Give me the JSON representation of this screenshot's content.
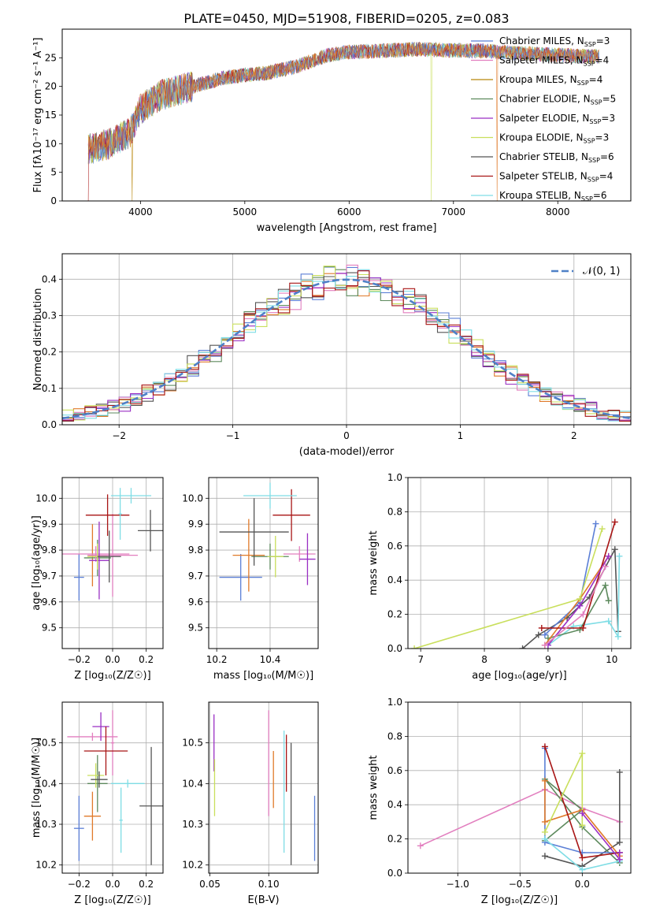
{
  "title": "PLATE=0450, MJD=51908, FIBERID=0205, z=0.083",
  "colors": {
    "blue": "#5b7fd6",
    "orange": "#e07a2a",
    "green": "#5d8a5d",
    "pink": "#e27fbf",
    "dgray": "#555555",
    "purple": "#9a2fc4",
    "lime": "#c9df5c",
    "cyan": "#7fdde5",
    "red": "#a81515",
    "tan": "#b8860b",
    "gaussian": "#4f81c7"
  },
  "chart_data": [
    {
      "type": "line",
      "title": "PLATE=0450, MJD=51908, FIBERID=0205, z=0.083",
      "xlabel": "wavelength [Angstrom, rest frame]",
      "ylabel": "Flux [fλ10⁻¹⁷ erg cm⁻² s⁻¹ A⁻¹]",
      "xlim": [
        3250,
        8700
      ],
      "ylim": [
        0,
        30
      ],
      "xticks": [
        "4000",
        "5000",
        "6000",
        "7000",
        "8000"
      ],
      "yticks": [
        "0",
        "5",
        "10",
        "15",
        "20",
        "25"
      ],
      "continuum": {
        "x": [
          3500,
          3700,
          3900,
          4000,
          4200,
          4500,
          4800,
          5000,
          5200,
          5500,
          5800,
          6000,
          6300,
          6600,
          7000,
          7300,
          7600,
          7900,
          8200,
          8400
        ],
        "y": [
          9,
          10,
          12,
          16,
          18.5,
          20,
          21.5,
          22,
          22.3,
          23.5,
          25.5,
          26,
          26.2,
          26.5,
          26.3,
          26.2,
          25.8,
          25.6,
          25.3,
          25.2
        ]
      },
      "legend_position": "upper right",
      "legend": [
        {
          "label": "Chabrier MILES, N",
          "sub": "SSP",
          "value": "=3",
          "color": "#5b7fd6"
        },
        {
          "label": "Salpeter MILES, N",
          "sub": "SSP",
          "value": "=4",
          "color": "#e27fbf"
        },
        {
          "label": "Kroupa MILES, N",
          "sub": "SSP",
          "value": "=4",
          "color": "#b8860b"
        },
        {
          "label": "Chabrier ELODIE, N",
          "sub": "SSP",
          "value": "=5",
          "color": "#5d8a5d"
        },
        {
          "label": "Salpeter ELODIE, N",
          "sub": "SSP",
          "value": "=3",
          "color": "#9a2fc4"
        },
        {
          "label": "Kroupa ELODIE, N",
          "sub": "SSP",
          "value": "=3",
          "color": "#c9df5c"
        },
        {
          "label": "Chabrier STELIB, N",
          "sub": "SSP",
          "value": "=6",
          "color": "#555555"
        },
        {
          "label": "Salpeter STELIB, N",
          "sub": "SSP",
          "value": "=4",
          "color": "#a81515"
        },
        {
          "label": "Kroupa STELIB, N",
          "sub": "SSP",
          "value": "=6",
          "color": "#7fdde5"
        }
      ]
    },
    {
      "type": "histogram",
      "xlabel": "(data-model)/error",
      "ylabel": "Normed distribution",
      "xlim": [
        -2.5,
        2.5
      ],
      "ylim": [
        0,
        0.47
      ],
      "xticks": [
        "−2",
        "−1",
        "0",
        "1",
        "2"
      ],
      "yticks": [
        "0.0",
        "0.1",
        "0.2",
        "0.3",
        "0.4"
      ],
      "bin_width": 0.1,
      "legend_position": "upper right",
      "legend": [
        {
          "label": "𝒩(0, 1)",
          "color": "#4f81c7"
        }
      ],
      "series_colors": [
        "#5b7fd6",
        "#e07a2a",
        "#5d8a5d",
        "#e27fbf",
        "#555555",
        "#9a2fc4",
        "#c9df5c",
        "#7fdde5",
        "#a81515"
      ]
    },
    {
      "type": "errorbar",
      "xlabel": "Z [log₁₀(Z/Z☉)]",
      "ylabel": "age [log₁₀(age/yr)]",
      "xlim": [
        -0.3,
        0.3
      ],
      "ylim": [
        9.42,
        10.08
      ],
      "xticks": [
        "−0.2",
        "0.0",
        "0.2"
      ],
      "yticks": [
        "9.5",
        "9.6",
        "9.7",
        "9.8",
        "9.9",
        "10.0"
      ],
      "points": [
        {
          "x": -0.2,
          "xerr": 0.03,
          "y": 9.695,
          "yerr": 0.09,
          "color": "#5b7fd6"
        },
        {
          "x": -0.12,
          "xerr": 0.02,
          "y": 9.78,
          "yerr": 0.12,
          "color": "#e07a2a"
        },
        {
          "x": -0.09,
          "xerr": 0.08,
          "y": 9.77,
          "yerr": 0.07,
          "color": "#5d8a5d"
        },
        {
          "x": -0.1,
          "xerr": 0.2,
          "y": 9.785,
          "yerr": 0.03,
          "color": "#e27fbf"
        },
        {
          "x": 0.0,
          "xerr": 0.15,
          "y": 9.78,
          "yerr": 0.16,
          "color": "#e27fbf"
        },
        {
          "x": -0.08,
          "xerr": 0.06,
          "y": 9.76,
          "yerr": 0.15,
          "color": "#9a2fc4"
        },
        {
          "x": -0.09,
          "xerr": 0.06,
          "y": 9.775,
          "yerr": 0.05,
          "color": "#c9df5c"
        },
        {
          "x": 0.225,
          "xerr": 0.075,
          "y": 9.875,
          "yerr": 0.08,
          "color": "#555555"
        },
        {
          "x": -0.02,
          "xerr": 0.07,
          "y": 9.775,
          "yerr": 0.1,
          "color": "#555555"
        },
        {
          "x": -0.03,
          "xerr": 0.13,
          "y": 9.935,
          "yerr": 0.08,
          "color": "#a81515"
        },
        {
          "x": 0.11,
          "xerr": 0.12,
          "y": 10.01,
          "yerr": 0.03,
          "color": "#7fdde5"
        },
        {
          "x": 0.045,
          "xerr": 0.01,
          "y": 9.94,
          "yerr": 0.1,
          "color": "#7fdde5"
        }
      ]
    },
    {
      "type": "errorbar",
      "xlabel": "mass [log₁₀(M/M☉)]",
      "ylabel": "",
      "xlim": [
        10.17,
        10.58
      ],
      "ylim": [
        9.42,
        10.08
      ],
      "xticks": [
        "10.2",
        "10.4"
      ],
      "yticks": [
        "9.5",
        "9.6",
        "9.7",
        "9.8",
        "9.9",
        "10.0"
      ],
      "points": [
        {
          "x": 10.29,
          "xerr": 0.08,
          "y": 9.695,
          "yerr": 0.09,
          "color": "#5b7fd6"
        },
        {
          "x": 10.32,
          "xerr": 0.06,
          "y": 9.78,
          "yerr": 0.14,
          "color": "#e07a2a"
        },
        {
          "x": 10.4,
          "xerr": 0.07,
          "y": 9.775,
          "yerr": 0.05,
          "color": "#5d8a5d"
        },
        {
          "x": 10.51,
          "xerr": 0.06,
          "y": 9.785,
          "yerr": 0.03,
          "color": "#e27fbf"
        },
        {
          "x": 10.54,
          "xerr": 0.03,
          "y": 9.765,
          "yerr": 0.1,
          "color": "#9a2fc4"
        },
        {
          "x": 10.42,
          "xerr": 0.03,
          "y": 9.775,
          "yerr": 0.08,
          "color": "#c9df5c"
        },
        {
          "x": 10.34,
          "xerr": 0.13,
          "y": 9.87,
          "yerr": 0.13,
          "color": "#555555"
        },
        {
          "x": 10.48,
          "xerr": 0.07,
          "y": 9.935,
          "yerr": 0.1,
          "color": "#a81515"
        },
        {
          "x": 10.4,
          "xerr": 0.1,
          "y": 10.01,
          "yerr": 0.05,
          "color": "#7fdde5"
        }
      ]
    },
    {
      "type": "line",
      "xlabel": "age [log₁₀(age/yr)]",
      "ylabel": "mass weight",
      "xlim": [
        6.8,
        10.3
      ],
      "ylim": [
        0,
        1
      ],
      "xticks": [
        "7",
        "8",
        "9",
        "10"
      ],
      "yticks": [
        "0.0",
        "0.2",
        "0.4",
        "0.6",
        "0.8",
        "1.0"
      ],
      "series": [
        {
          "color": "#555555",
          "x": [
            8.6,
            8.85,
            9.3,
            9.65,
            10.05,
            10.1
          ],
          "y": [
            0.0,
            0.08,
            0.18,
            0.3,
            0.58,
            0.1
          ]
        },
        {
          "color": "#7fdde5",
          "x": [
            9.0,
            9.4,
            9.95,
            10.1,
            10.12
          ],
          "y": [
            0.02,
            0.13,
            0.16,
            0.07,
            0.54
          ]
        },
        {
          "color": "#5d8a5d",
          "x": [
            9.0,
            9.5,
            9.9,
            9.95
          ],
          "y": [
            0.06,
            0.11,
            0.37,
            0.28
          ]
        },
        {
          "color": "#5b7fd6",
          "x": [
            8.95,
            9.5,
            9.75
          ],
          "y": [
            0.08,
            0.27,
            0.73
          ]
        },
        {
          "color": "#e07a2a",
          "x": [
            8.95,
            9.5,
            9.95
          ],
          "y": [
            0.02,
            0.29,
            0.54
          ]
        },
        {
          "color": "#a81515",
          "x": [
            8.9,
            9.55,
            10.05
          ],
          "y": [
            0.12,
            0.12,
            0.74
          ]
        },
        {
          "color": "#c9df5c",
          "x": [
            6.9,
            9.5,
            9.85
          ],
          "y": [
            0.0,
            0.29,
            0.7
          ]
        },
        {
          "color": "#9a2fc4",
          "x": [
            9.0,
            9.5,
            9.95
          ],
          "y": [
            0.02,
            0.25,
            0.54
          ]
        },
        {
          "color": "#e27fbf",
          "x": [
            8.95,
            9.55,
            9.9
          ],
          "y": [
            0.02,
            0.2,
            0.48
          ]
        }
      ]
    },
    {
      "type": "errorbar",
      "xlabel": "Z [log₁₀(Z/Z☉)]",
      "ylabel": "mass [log₁₀(M/M☉)]",
      "xlim": [
        -0.3,
        0.3
      ],
      "ylim": [
        10.18,
        10.6
      ],
      "xticks": [
        "−0.2",
        "0.0",
        "0.2"
      ],
      "yticks": [
        "10.2",
        "10.3",
        "10.4",
        "10.5"
      ],
      "points": [
        {
          "x": -0.2,
          "xerr": 0.03,
          "y": 10.29,
          "yerr": 0.08,
          "color": "#5b7fd6"
        },
        {
          "x": -0.12,
          "xerr": 0.05,
          "y": 10.32,
          "yerr": 0.06,
          "color": "#e07a2a"
        },
        {
          "x": -0.09,
          "xerr": 0.06,
          "y": 10.4,
          "yerr": 0.07,
          "color": "#5d8a5d"
        },
        {
          "x": -0.12,
          "xerr": 0.15,
          "y": 10.515,
          "yerr": 0.01,
          "color": "#e27fbf"
        },
        {
          "x": 0.0,
          "xerr": 0.01,
          "y": 10.5,
          "yerr": 0.08,
          "color": "#e27fbf"
        },
        {
          "x": -0.07,
          "xerr": 0.05,
          "y": 10.54,
          "yerr": 0.035,
          "color": "#9a2fc4"
        },
        {
          "x": -0.1,
          "xerr": 0.05,
          "y": 10.42,
          "yerr": 0.03,
          "color": "#c9df5c"
        },
        {
          "x": 0.23,
          "xerr": 0.07,
          "y": 10.345,
          "yerr": 0.145,
          "color": "#555555"
        },
        {
          "x": -0.08,
          "xerr": 0.05,
          "y": 10.41,
          "yerr": 0.02,
          "color": "#555555"
        },
        {
          "x": -0.04,
          "xerr": 0.13,
          "y": 10.48,
          "yerr": 0.06,
          "color": "#a81515"
        },
        {
          "x": 0.09,
          "xerr": 0.1,
          "y": 10.4,
          "yerr": 0.01,
          "color": "#7fdde5"
        },
        {
          "x": 0.05,
          "xerr": 0.01,
          "y": 10.31,
          "yerr": 0.08,
          "color": "#7fdde5"
        }
      ]
    },
    {
      "type": "errorbar",
      "xlabel": "E(B-V)",
      "ylabel": "",
      "xlim": [
        0.049,
        0.142
      ],
      "ylim": [
        10.18,
        10.6
      ],
      "xticks": [
        "0.05",
        "0.10"
      ],
      "yticks": [
        "10.2",
        "10.3",
        "10.4",
        "10.5"
      ],
      "points": [
        {
          "x": 0.0535,
          "y": 10.5,
          "yerr": 0.07,
          "color": "#9a2fc4"
        },
        {
          "x": 0.054,
          "y": 10.39,
          "yerr": 0.07,
          "color": "#c9df5c"
        },
        {
          "x": 0.1,
          "y": 10.45,
          "yerr": 0.13,
          "color": "#e27fbf"
        },
        {
          "x": 0.104,
          "y": 10.41,
          "yerr": 0.07,
          "color": "#e07a2a"
        },
        {
          "x": 0.113,
          "y": 10.38,
          "yerr": 0.15,
          "color": "#7fdde5"
        },
        {
          "x": 0.115,
          "y": 10.45,
          "yerr": 0.07,
          "color": "#a81515"
        },
        {
          "x": 0.119,
          "y": 10.35,
          "yerr": 0.15,
          "color": "#555555"
        },
        {
          "x": 0.139,
          "y": 10.29,
          "yerr": 0.08,
          "color": "#5b7fd6"
        }
      ]
    },
    {
      "type": "line",
      "xlabel": "Z [log₁₀(Z/Z☉)]",
      "ylabel": "mass weight",
      "xlim": [
        -1.4,
        0.39
      ],
      "ylim": [
        0,
        1
      ],
      "xticks": [
        "−1.0",
        "−0.5",
        "0.0"
      ],
      "yticks": [
        "0.0",
        "0.2",
        "0.4",
        "0.6",
        "0.8",
        "1.0"
      ],
      "series": [
        {
          "color": "#e27fbf",
          "x": [
            -1.3,
            -0.3,
            0.0,
            0.3
          ],
          "y": [
            0.16,
            0.49,
            0.38,
            0.3
          ]
        },
        {
          "color": "#555555",
          "x": [
            -0.3,
            0.0,
            0.3,
            0.3
          ],
          "y": [
            0.1,
            0.04,
            0.18,
            0.59
          ]
        },
        {
          "color": "#5d8a5d",
          "x": [
            -0.3,
            0.0,
            -0.3,
            0.0,
            0.3
          ],
          "y": [
            0.19,
            0.37,
            0.55,
            0.27,
            0.06
          ]
        },
        {
          "color": "#5b7fd6",
          "x": [
            -0.3,
            -0.3,
            0.0,
            0.3
          ],
          "y": [
            0.73,
            0.18,
            0.12,
            0.12
          ]
        },
        {
          "color": "#e07a2a",
          "x": [
            -0.3,
            -0.3,
            0.0,
            0.3
          ],
          "y": [
            0.54,
            0.3,
            0.37,
            0.1
          ]
        },
        {
          "color": "#a81515",
          "x": [
            -0.3,
            0.0,
            0.3
          ],
          "y": [
            0.74,
            0.09,
            0.12
          ]
        },
        {
          "color": "#c9df5c",
          "x": [
            -0.3,
            0.0,
            0.0
          ],
          "y": [
            0.24,
            0.7,
            0.28
          ]
        },
        {
          "color": "#7fdde5",
          "x": [
            -0.3,
            0.0,
            0.3
          ],
          "y": [
            0.2,
            0.02,
            0.07
          ]
        },
        {
          "color": "#9a2fc4",
          "x": [
            0.3,
            0.3,
            0.0
          ],
          "y": [
            0.12,
            0.08,
            0.35
          ]
        }
      ]
    }
  ]
}
